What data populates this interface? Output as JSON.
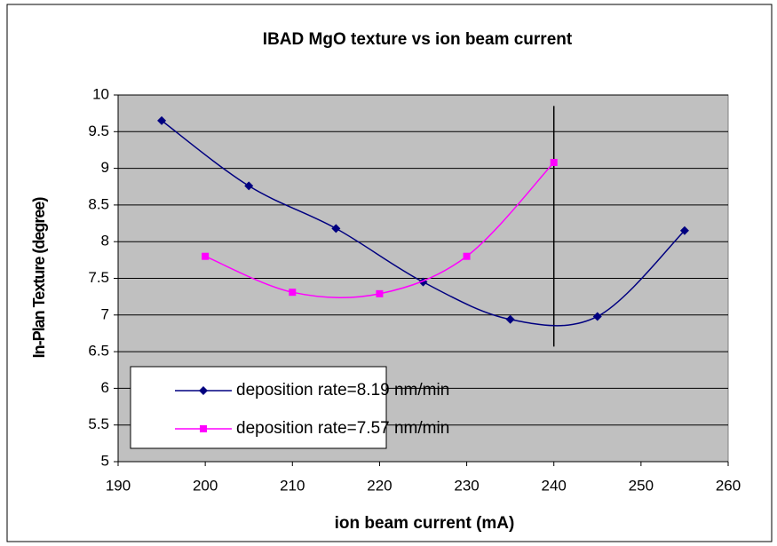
{
  "chart_data": {
    "type": "line",
    "title": "IBAD MgO texture vs ion beam current",
    "x_label": "ion beam current (mA)",
    "y_label": "In-Plan Texture (degree)",
    "xlim": [
      190,
      260
    ],
    "xticks": [
      190,
      200,
      210,
      220,
      230,
      240,
      250,
      260
    ],
    "ylim": [
      5,
      10
    ],
    "yticks": [
      5,
      5.5,
      6,
      6.5,
      7,
      7.5,
      8,
      8.5,
      9,
      9.5,
      10
    ],
    "grid": true,
    "smooth": true,
    "legend": "lower left",
    "series": [
      {
        "name": "deposition rate=8.19 nm/min",
        "color": "#000080",
        "marker": "diamond",
        "x": [
          195,
          205,
          215,
          225,
          235,
          245,
          255
        ],
        "values": [
          9.65,
          8.76,
          8.18,
          7.45,
          6.94,
          6.98,
          8.15
        ]
      },
      {
        "name": "deposition rate=7.57 nm/min",
        "color": "#ff00ff",
        "marker": "square",
        "x": [
          200,
          210,
          220,
          230,
          240
        ],
        "values": [
          7.8,
          7.31,
          7.29,
          7.8,
          9.08
        ]
      }
    ],
    "vline": {
      "x": 240,
      "y": [
        6.57,
        9.85
      ]
    }
  }
}
